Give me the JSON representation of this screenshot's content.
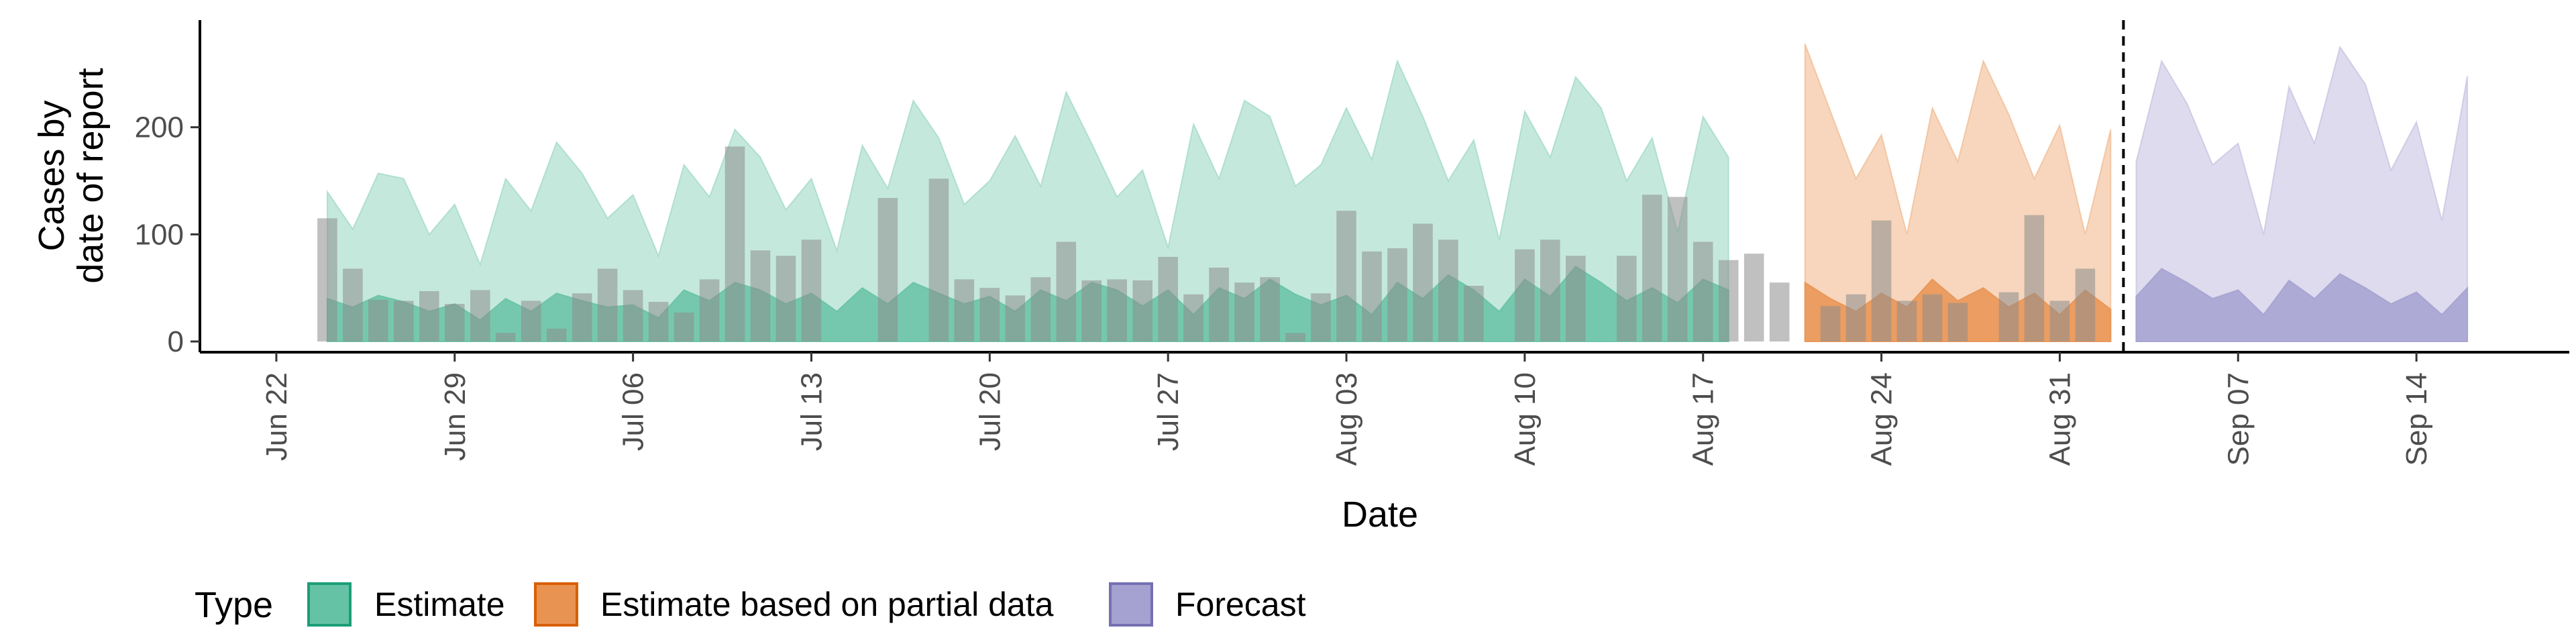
{
  "chart_data": {
    "type": "area",
    "xlabel": "Date",
    "ylabel": [
      "Cases by",
      "date of report"
    ],
    "x_start": "2020-06-24",
    "x_range": [
      "2020-06-19",
      "2020-09-20"
    ],
    "ylim": [
      -10,
      300
    ],
    "y_ticks": [
      0,
      100,
      200
    ],
    "x_ticks": [
      {
        "date": "2020-06-22",
        "label": "Jun 22"
      },
      {
        "date": "2020-06-29",
        "label": "Jun 29"
      },
      {
        "date": "2020-07-06",
        "label": "Jul 06"
      },
      {
        "date": "2020-07-13",
        "label": "Jul 13"
      },
      {
        "date": "2020-07-20",
        "label": "Jul 20"
      },
      {
        "date": "2020-07-27",
        "label": "Jul 27"
      },
      {
        "date": "2020-08-03",
        "label": "Aug 03"
      },
      {
        "date": "2020-08-10",
        "label": "Aug 10"
      },
      {
        "date": "2020-08-17",
        "label": "Aug 17"
      },
      {
        "date": "2020-08-24",
        "label": "Aug 24"
      },
      {
        "date": "2020-08-31",
        "label": "Aug 31"
      },
      {
        "date": "2020-09-07",
        "label": "Sep 07"
      },
      {
        "date": "2020-09-14",
        "label": "Sep 14"
      }
    ],
    "forecast_date": "2020-09-02",
    "legend": {
      "title": "Type",
      "position": "bottom-left",
      "entries": [
        {
          "name": "Estimate",
          "fill": "#66c2a5",
          "stroke": "#1b9e77"
        },
        {
          "name": "Estimate based on partial data",
          "fill": "#e99352",
          "stroke": "#d95f02"
        },
        {
          "name": "Forecast",
          "fill": "#a5a1d0",
          "stroke": "#7570b3"
        }
      ]
    },
    "grid": false,
    "observed_cases": [
      115,
      68,
      39,
      38,
      47,
      35,
      48,
      8,
      38,
      12,
      45,
      68,
      48,
      37,
      27,
      58,
      182,
      85,
      80,
      95,
      0,
      0,
      134,
      0,
      152,
      58,
      50,
      43,
      60,
      93,
      57,
      58,
      57,
      79,
      44,
      69,
      55,
      60,
      8,
      45,
      122,
      84,
      87,
      110,
      95,
      52,
      0,
      86,
      95,
      80,
      0,
      80,
      137,
      135,
      93,
      76,
      82,
      55,
      0,
      33,
      44,
      113,
      38,
      44,
      36,
      0,
      46,
      118,
      38,
      68
    ],
    "series": [
      {
        "name": "Estimate",
        "start": "2020-06-24",
        "upper": [
          140,
          105,
          157,
          152,
          100,
          128,
          72,
          152,
          122,
          186,
          157,
          115,
          137,
          80,
          165,
          135,
          198,
          172,
          123,
          152,
          85,
          183,
          143,
          225,
          190,
          128,
          150,
          192,
          145,
          233,
          185,
          135,
          160,
          88,
          203,
          152,
          225,
          210,
          145,
          165,
          218,
          170,
          262,
          210,
          150,
          188,
          95,
          215,
          172,
          247,
          218,
          150,
          190,
          102,
          210,
          172
        ],
        "lower": [
          40,
          32,
          43,
          37,
          28,
          35,
          20,
          40,
          28,
          45,
          38,
          32,
          34,
          22,
          48,
          38,
          55,
          48,
          35,
          45,
          28,
          50,
          35,
          55,
          45,
          35,
          42,
          28,
          48,
          38,
          55,
          48,
          33,
          48,
          25,
          50,
          40,
          58,
          44,
          34,
          43,
          25,
          55,
          40,
          62,
          48,
          28,
          58,
          42,
          70,
          55,
          38,
          50,
          36,
          58,
          48
        ]
      },
      {
        "name": "Estimate based on partial data",
        "start": "2020-08-21",
        "upper": [
          278,
          215,
          152,
          193,
          100,
          218,
          168,
          262,
          212,
          152,
          202,
          100,
          198
        ],
        "lower": [
          55,
          40,
          28,
          45,
          32,
          58,
          38,
          50,
          32,
          45,
          25,
          48,
          30
        ]
      },
      {
        "name": "Forecast",
        "start": "2020-09-03",
        "upper": [
          168,
          262,
          222,
          165,
          185,
          100,
          238,
          185,
          275,
          240,
          160,
          205,
          113,
          248
        ],
        "lower": [
          42,
          68,
          55,
          40,
          48,
          25,
          57,
          40,
          63,
          50,
          35,
          46,
          25,
          50
        ]
      }
    ]
  }
}
